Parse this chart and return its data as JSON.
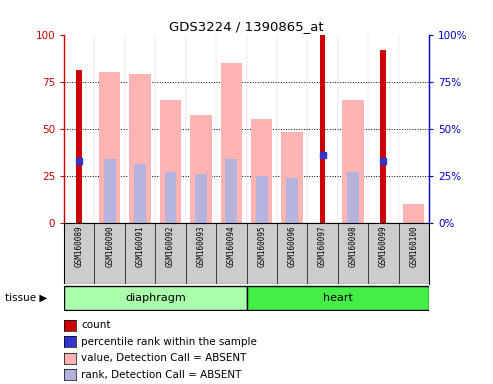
{
  "title": "GDS3224 / 1390865_at",
  "samples": [
    "GSM160089",
    "GSM160090",
    "GSM160091",
    "GSM160092",
    "GSM160093",
    "GSM160094",
    "GSM160095",
    "GSM160096",
    "GSM160097",
    "GSM160098",
    "GSM160099",
    "GSM160100"
  ],
  "diaphragm_samples": [
    "GSM160089",
    "GSM160090",
    "GSM160091",
    "GSM160092",
    "GSM160093",
    "GSM160094"
  ],
  "heart_samples": [
    "GSM160095",
    "GSM160096",
    "GSM160097",
    "GSM160098",
    "GSM160099",
    "GSM160100"
  ],
  "count": [
    81,
    0,
    0,
    0,
    0,
    0,
    0,
    0,
    100,
    0,
    92,
    0
  ],
  "percentile_rank": [
    33,
    0,
    0,
    0,
    0,
    0,
    0,
    0,
    36,
    0,
    33,
    0
  ],
  "value_absent": [
    0,
    80,
    79,
    65,
    57,
    85,
    55,
    48,
    0,
    65,
    0,
    10
  ],
  "rank_absent": [
    0,
    34,
    31,
    27,
    26,
    34,
    25,
    24,
    0,
    27,
    0,
    0
  ],
  "count_color": "#cc0000",
  "percentile_color": "#3333cc",
  "value_absent_color": "#ffb3b3",
  "rank_absent_color": "#b3b3dd",
  "diaphragm_color": "#aaffaa",
  "heart_color": "#44ee44",
  "ylim": [
    0,
    100
  ],
  "tick_left": [
    0,
    25,
    50,
    75,
    100
  ],
  "tick_right": [
    0,
    25,
    50,
    75,
    100
  ],
  "tick_right_labels": [
    "0%",
    "25%",
    "50%",
    "75%",
    "100%"
  ],
  "left_color": "#cc0000",
  "right_color": "#0000cc",
  "tissue_label": "tissue",
  "legend_items": [
    {
      "label": "count",
      "color": "#cc0000"
    },
    {
      "label": "percentile rank within the sample",
      "color": "#3333cc"
    },
    {
      "label": "value, Detection Call = ABSENT",
      "color": "#ffb3b3"
    },
    {
      "label": "rank, Detection Call = ABSENT",
      "color": "#b3b3dd"
    }
  ]
}
